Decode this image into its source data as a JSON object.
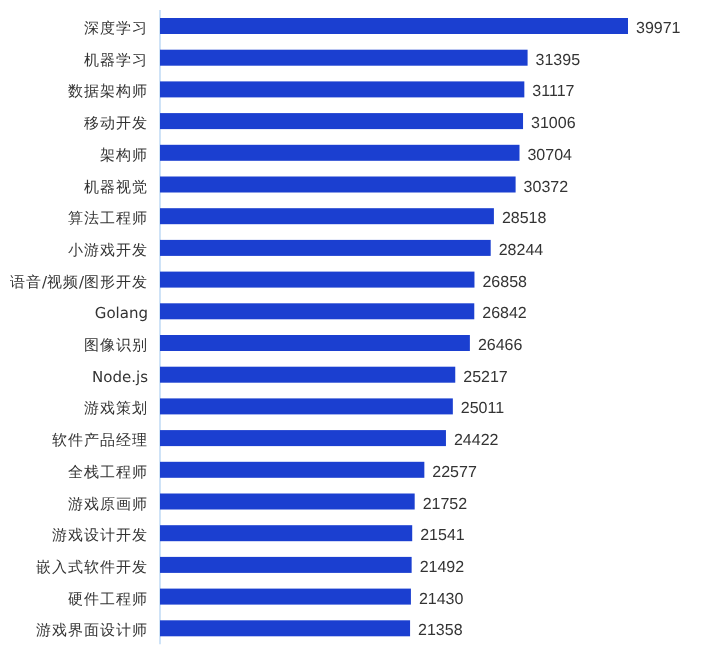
{
  "chart_data": {
    "type": "bar",
    "orientation": "horizontal",
    "data_labels": true,
    "color": "#1b3fd0",
    "categories": [
      "深度学习",
      "机器学习",
      "数据架构师",
      "移动开发",
      "架构师",
      "机器视觉",
      "算法工程师",
      "小游戏开发",
      "语音/视频/图形开发",
      "Golang",
      "图像识别",
      "Node.js",
      "游戏策划",
      "软件产品经理",
      "全栈工程师",
      "游戏原画师",
      "游戏设计开发",
      "嵌入式软件开发",
      "硬件工程师",
      "游戏界面设计师"
    ],
    "values": [
      39971,
      31395,
      31117,
      31006,
      30704,
      30372,
      28518,
      28244,
      26858,
      26842,
      26466,
      25217,
      25011,
      24422,
      22577,
      21752,
      21541,
      21492,
      21430,
      21358
    ]
  }
}
